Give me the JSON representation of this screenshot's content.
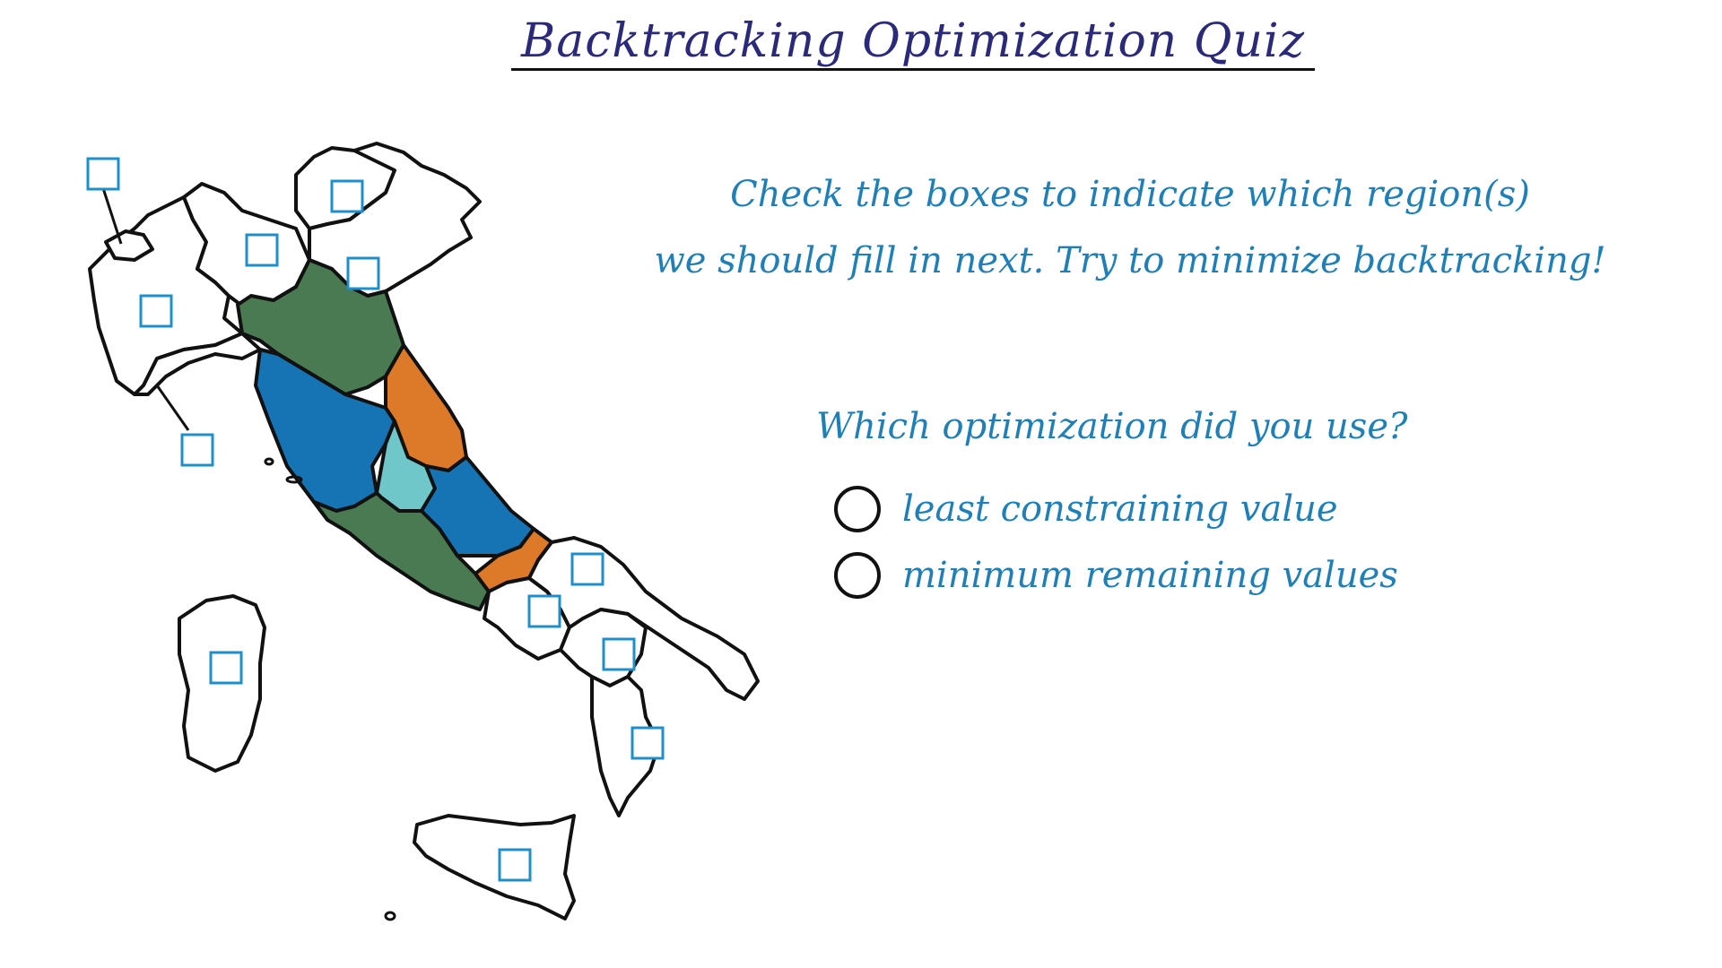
{
  "title": "Backtracking Optimization Quiz",
  "instructions": {
    "line1": "Check the boxes to indicate which region(s)",
    "line2": "we should fill in next. Try to minimize backtracking!"
  },
  "question": "Which optimization did you use?",
  "options": [
    {
      "label": "least constraining value",
      "selected": false
    },
    {
      "label": "minimum remaining values",
      "selected": false
    }
  ],
  "region_colors": {
    "green": "#4a7a52",
    "blue": "#1674b4",
    "orange": "#dc7a2a",
    "light_blue": "#6fc7c9",
    "uncolored": "#ffffff"
  },
  "checkboxes": [
    {
      "region": "Valle d'Aosta",
      "checked": false
    },
    {
      "region": "Lombardia",
      "checked": false
    },
    {
      "region": "Trentino-Alto Adige",
      "checked": false
    },
    {
      "region": "Veneto",
      "checked": false
    },
    {
      "region": "Piemonte",
      "checked": false
    },
    {
      "region": "Liguria",
      "checked": false
    },
    {
      "region": "Puglia (north)",
      "checked": false
    },
    {
      "region": "Campania",
      "checked": false
    },
    {
      "region": "Basilicata",
      "checked": false
    },
    {
      "region": "Calabria",
      "checked": false
    },
    {
      "region": "Sardegna",
      "checked": false
    },
    {
      "region": "Sicilia",
      "checked": false
    }
  ]
}
